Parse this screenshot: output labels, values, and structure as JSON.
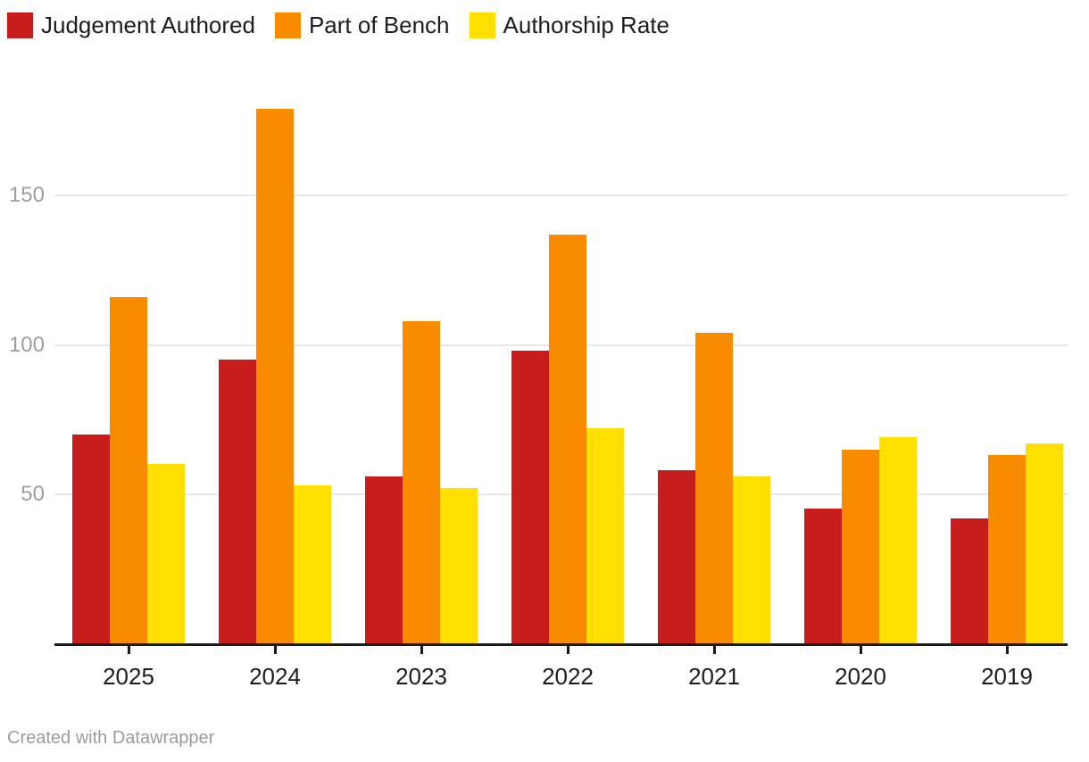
{
  "chart_data": {
    "type": "bar",
    "title": "",
    "categories": [
      "2025",
      "2024",
      "2023",
      "2022",
      "2021",
      "2020",
      "2019"
    ],
    "series": [
      {
        "name": "Judgement Authored",
        "color": "#c71e1d",
        "values": [
          70,
          95,
          56,
          98,
          58,
          45,
          42
        ]
      },
      {
        "name": "Part of Bench",
        "color": "#f98b00",
        "values": [
          116,
          179,
          108,
          137,
          104,
          65,
          63
        ]
      },
      {
        "name": "Authorship Rate",
        "color": "#ffe000",
        "values": [
          60,
          53,
          52,
          72,
          56,
          69,
          67
        ]
      }
    ],
    "y_ticks": [
      50,
      100,
      150
    ],
    "ylim": [
      0,
      200
    ],
    "grid": "horizontal",
    "legend_position": "top-left"
  },
  "legend": {
    "items": [
      {
        "label": "Judgement Authored",
        "color": "#c71e1d"
      },
      {
        "label": "Part of Bench",
        "color": "#f98b00"
      },
      {
        "label": "Authorship Rate",
        "color": "#ffe000"
      }
    ]
  },
  "footer": {
    "attribution": "Created with Datawrapper"
  },
  "colors": {
    "background": "#ffffff",
    "axis": "#1a1a1a",
    "grid": "#e8e8e8",
    "y_tick_label": "#9e9e9e",
    "category_label": "#1d1d1d",
    "attribution": "#9b9b9b"
  }
}
